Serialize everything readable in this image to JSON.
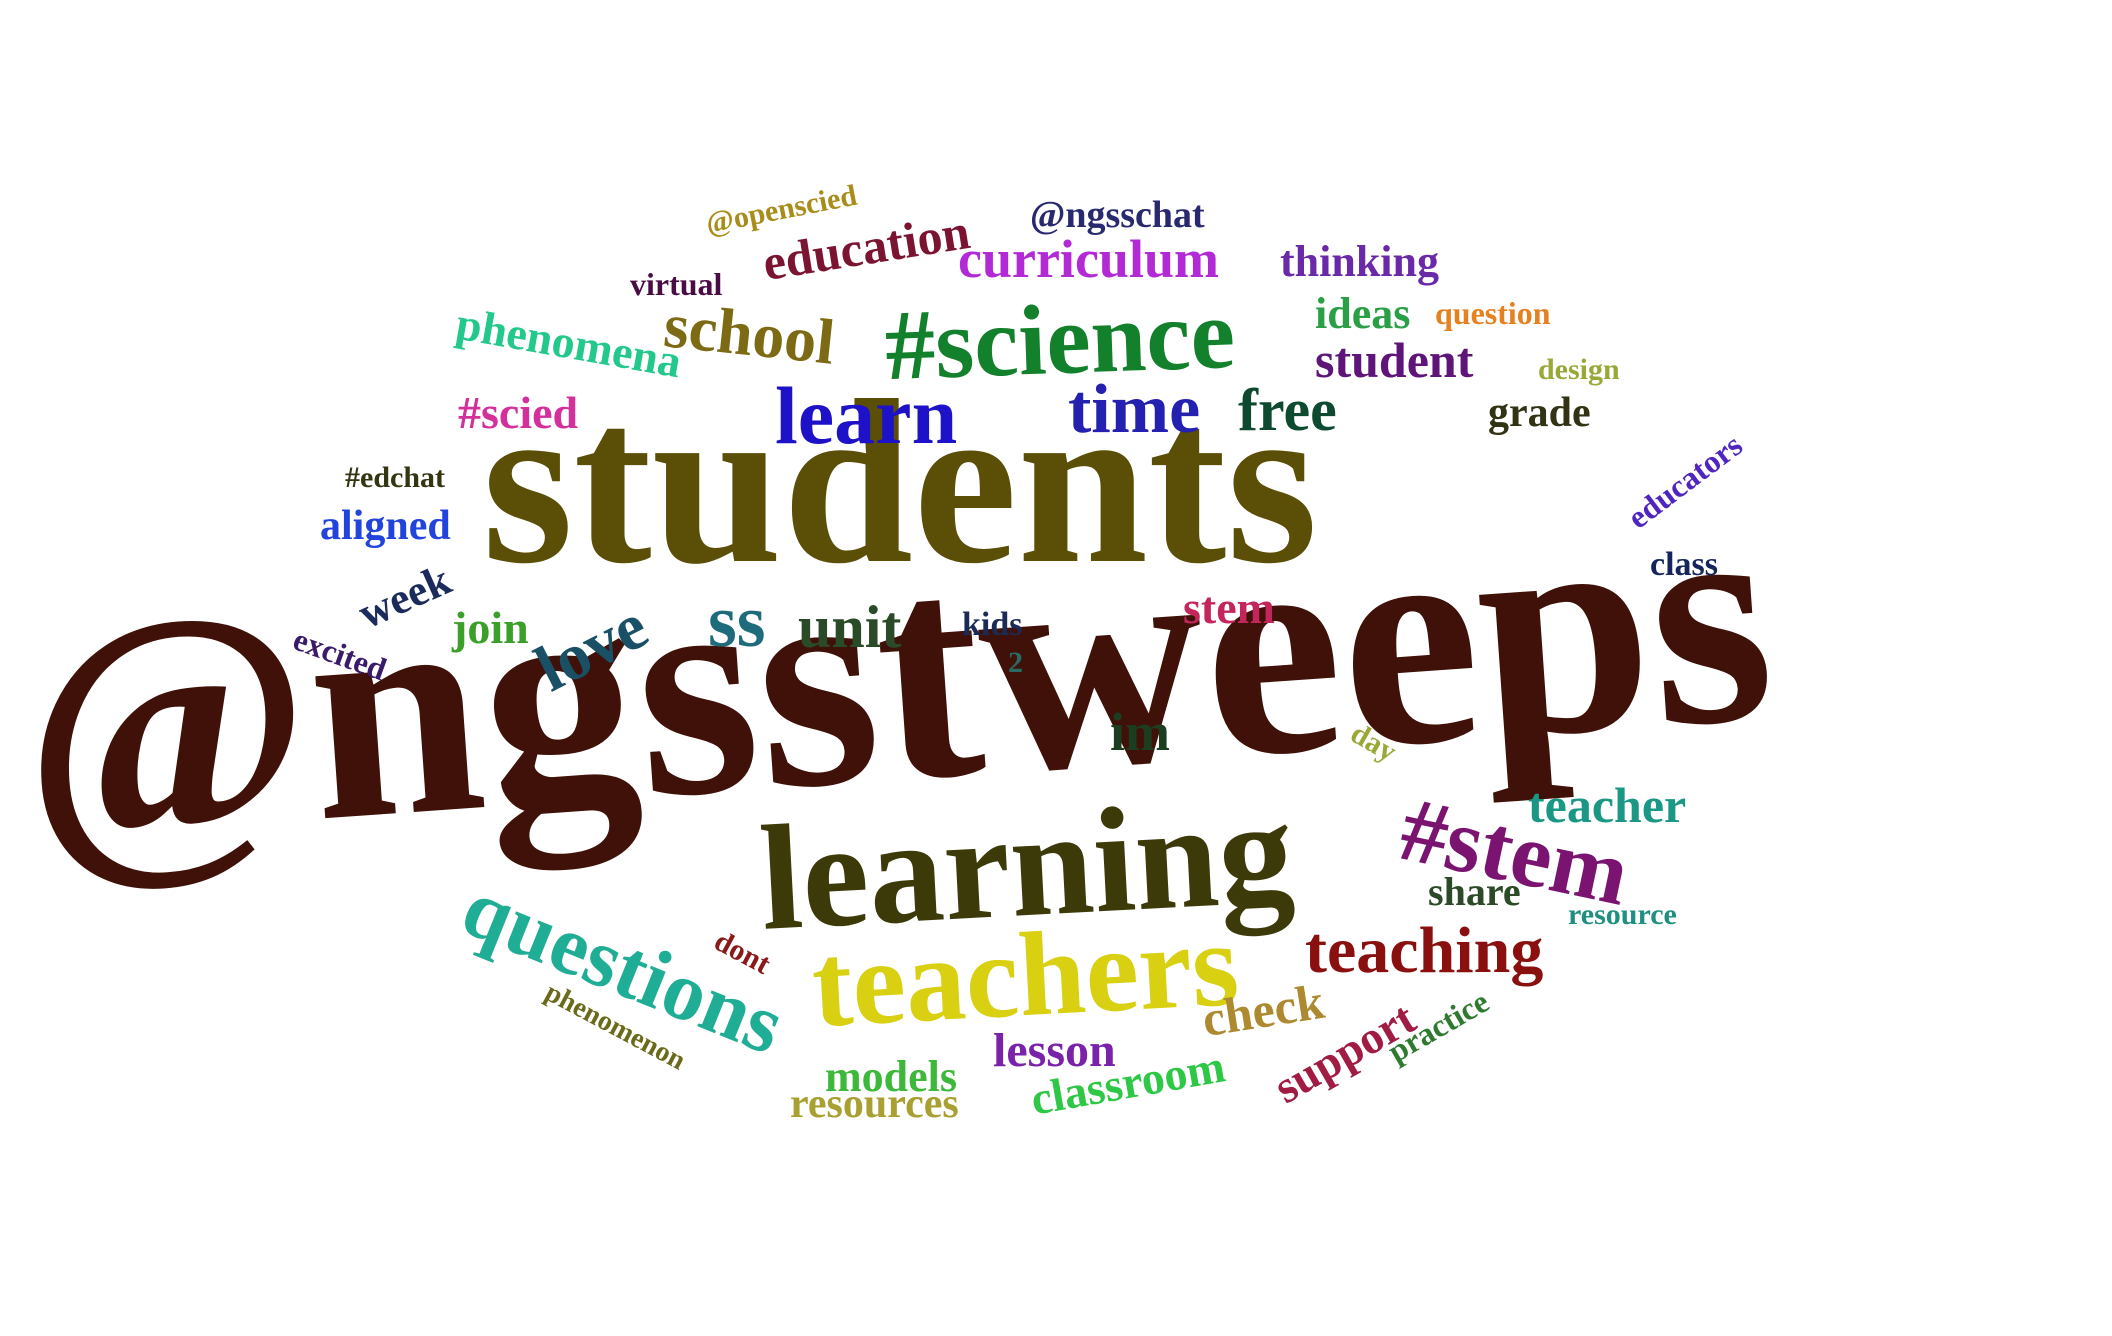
{
  "words": [
    {
      "text": "@ngsstweeps",
      "color": "#3f1108"
    },
    {
      "text": "students",
      "color": "#5b4e07"
    },
    {
      "text": "learning",
      "color": "#3d3a0a"
    },
    {
      "text": "teachers",
      "color": "#d9d012"
    },
    {
      "text": "#science",
      "color": "#13802c"
    },
    {
      "text": "learn",
      "color": "#1d12c8"
    },
    {
      "text": "time",
      "color": "#2420b0"
    },
    {
      "text": "free",
      "color": "#0d4a30"
    },
    {
      "text": "school",
      "color": "#7d6a14"
    },
    {
      "text": "#stem",
      "color": "#7a1470"
    },
    {
      "text": "questions",
      "color": "#1fae95"
    },
    {
      "text": "teaching",
      "color": "#8a1010"
    },
    {
      "text": "curriculum",
      "color": "#b229d6"
    },
    {
      "text": "education",
      "color": "#7a1431"
    },
    {
      "text": "phenomena",
      "color": "#23c98a"
    },
    {
      "text": "student",
      "color": "#5e1478"
    },
    {
      "text": "thinking",
      "color": "#6a2aa8"
    },
    {
      "text": "@ngsschat",
      "color": "#292970"
    },
    {
      "text": "@openscied",
      "color": "#a88d1a"
    },
    {
      "text": "virtual",
      "color": "#4a0c44"
    },
    {
      "text": "ideas",
      "color": "#2a9f45"
    },
    {
      "text": "question",
      "color": "#e58120"
    },
    {
      "text": "design",
      "color": "#9aa838"
    },
    {
      "text": "grade",
      "color": "#323214"
    },
    {
      "text": "#scied",
      "color": "#d4309c"
    },
    {
      "text": "#edchat",
      "color": "#353512"
    },
    {
      "text": "aligned",
      "color": "#2244dd"
    },
    {
      "text": "educators",
      "color": "#4f25c0"
    },
    {
      "text": "class",
      "color": "#15255c"
    },
    {
      "text": "week",
      "color": "#1b2b5c"
    },
    {
      "text": "love",
      "color": "#1a5066"
    },
    {
      "text": "join",
      "color": "#3c9f2a"
    },
    {
      "text": "ss",
      "color": "#1e6b7c"
    },
    {
      "text": "unit",
      "color": "#2a4a28"
    },
    {
      "text": "kids",
      "color": "#1c2b55"
    },
    {
      "text": "stem",
      "color": "#c2265a"
    },
    {
      "text": "excited",
      "color": "#3a1a6a"
    },
    {
      "text": "2",
      "color": "#2a6a64"
    },
    {
      "text": "im",
      "color": "#1c3d20"
    },
    {
      "text": "day",
      "color": "#9aa838"
    },
    {
      "text": "teacher",
      "color": "#1b9785"
    },
    {
      "text": "share",
      "color": "#2c4a28"
    },
    {
      "text": "resource",
      "color": "#1f8f80"
    },
    {
      "text": "dont",
      "color": "#8a1a1a"
    },
    {
      "text": "phenomenon",
      "color": "#6a6a1a"
    },
    {
      "text": "check",
      "color": "#ad8a30"
    },
    {
      "text": "support",
      "color": "#a01c42"
    },
    {
      "text": "practice",
      "color": "#2f7a30"
    },
    {
      "text": "lesson",
      "color": "#7a22aa"
    },
    {
      "text": "models",
      "color": "#3db83a"
    },
    {
      "text": "resources",
      "color": "#a8a030"
    },
    {
      "text": "classroom",
      "color": "#2ec846"
    }
  ]
}
